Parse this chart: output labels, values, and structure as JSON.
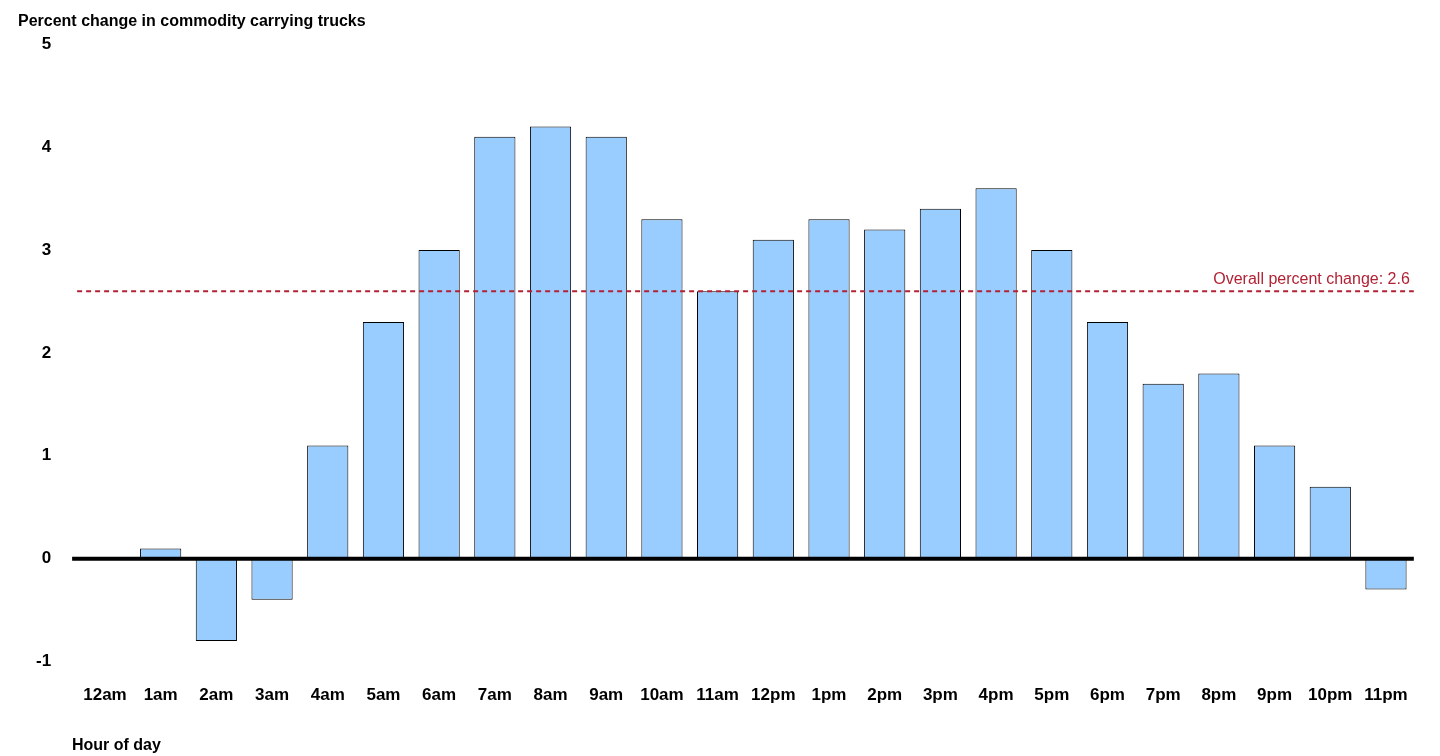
{
  "chart_data": {
    "type": "bar",
    "ylabel": "Percent change in commodity carrying trucks",
    "xlabel": "Hour of day",
    "categories": [
      "12am",
      "1am",
      "2am",
      "3am",
      "4am",
      "5am",
      "6am",
      "7am",
      "8am",
      "9am",
      "10am",
      "11am",
      "12pm",
      "1pm",
      "2pm",
      "3pm",
      "4pm",
      "5pm",
      "6pm",
      "7pm",
      "8pm",
      "9pm",
      "10pm",
      "11pm"
    ],
    "values": [
      0,
      0.1,
      -0.8,
      -0.4,
      1.1,
      2.3,
      3.0,
      4.1,
      4.2,
      4.1,
      3.3,
      2.6,
      3.1,
      3.3,
      3.2,
      3.4,
      3.6,
      3.0,
      2.3,
      1.7,
      1.8,
      1.1,
      0.7,
      -0.3
    ],
    "color": "#99ccff",
    "ylim": [
      -1,
      5
    ],
    "yticks": [
      -1,
      0,
      1,
      2,
      3,
      4,
      5
    ],
    "ref_lines": [
      {
        "axis": "y",
        "value": 2.6,
        "label": "Overall percent change: 2.6",
        "color": "#b22234",
        "line_style": "dashed"
      }
    ]
  }
}
